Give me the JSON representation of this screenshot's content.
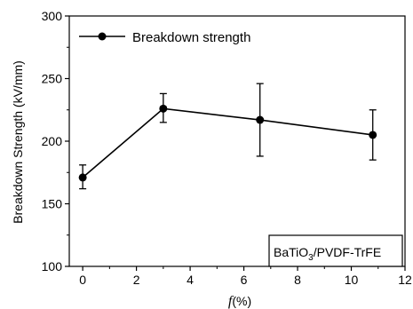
{
  "chart_data": {
    "type": "line",
    "xlabel_main": "f",
    "xlabel_suffix": "(%)",
    "ylabel": "Breakdown Strength (kV/mm)",
    "xlim": [
      -0.5,
      12
    ],
    "ylim": [
      100,
      300
    ],
    "xticks": [
      0,
      2,
      4,
      6,
      8,
      10,
      12
    ],
    "yticks": [
      100,
      150,
      200,
      250,
      300
    ],
    "grid": false,
    "legend_position": "top-left",
    "series": [
      {
        "name": "Breakdown strength",
        "x": [
          0,
          3,
          6.6,
          10.8
        ],
        "y": [
          171,
          226,
          217,
          205
        ],
        "error_upper": [
          181,
          238,
          246,
          225
        ],
        "error_lower": [
          162,
          215,
          188,
          185
        ],
        "color": "#000000",
        "marker": "filled-circle"
      }
    ],
    "annotation": {
      "prefix": "BaTiO",
      "subscript": "3",
      "suffix": "/PVDF-TrFE"
    }
  }
}
